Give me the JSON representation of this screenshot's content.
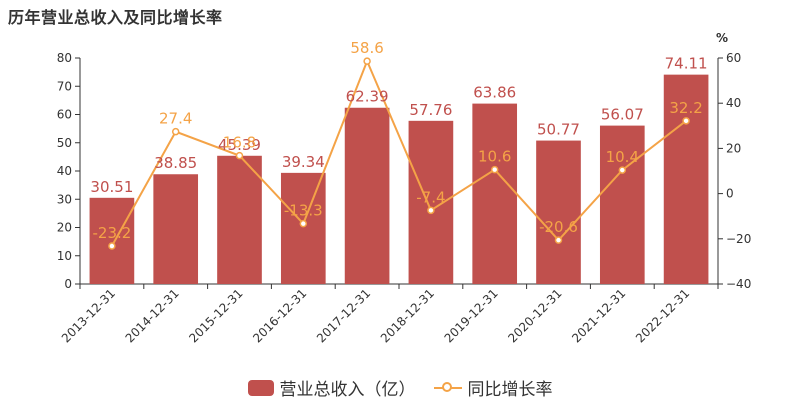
{
  "chart_data": {
    "type": "bar",
    "title": "历年营业总收入及同比增长率",
    "categories": [
      "2013-12-31",
      "2014-12-31",
      "2015-12-31",
      "2016-12-31",
      "2017-12-31",
      "2018-12-31",
      "2019-12-31",
      "2020-12-31",
      "2021-12-31",
      "2022-12-31"
    ],
    "series": [
      {
        "name": "营业总收入（亿）",
        "type": "bar",
        "axis": "left",
        "values": [
          30.51,
          38.85,
          45.39,
          39.34,
          62.39,
          57.76,
          63.86,
          50.77,
          56.07,
          74.11
        ],
        "labels": [
          "30.51",
          "38.85",
          "45.39",
          "39.34",
          "62.39",
          "57.76",
          "63.86",
          "50.77",
          "56.07",
          "74.11"
        ],
        "color": "#c0504d"
      },
      {
        "name": "同比增长率",
        "type": "line",
        "axis": "right",
        "values": [
          -23.2,
          27.4,
          16.8,
          -13.3,
          58.6,
          -7.4,
          10.6,
          -20.6,
          10.4,
          32.2
        ],
        "labels": [
          "-23.2",
          "27.4",
          "16.8",
          "-13.3",
          "58.6",
          "-7.4",
          "10.6",
          "-20.6",
          "10.4",
          "32.2"
        ],
        "color": "#f4a347"
      }
    ],
    "y_left": {
      "min": 0,
      "max": 80,
      "ticks": [
        0,
        10,
        20,
        30,
        40,
        50,
        60,
        70,
        80
      ]
    },
    "y_right": {
      "min": -40,
      "max": 60,
      "ticks": [
        -40,
        -20,
        0,
        20,
        40,
        60
      ],
      "unit_label": "%"
    },
    "grid": false,
    "legend_position": "bottom-center"
  }
}
